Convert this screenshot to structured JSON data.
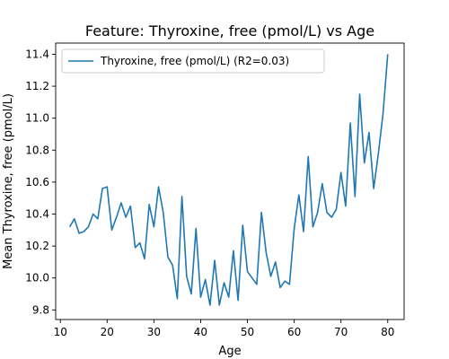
{
  "chart_data": {
    "type": "line",
    "title": "Feature: Thyroxine, free (pmol/L) vs Age",
    "xlabel": "Age",
    "ylabel": "Mean Thyroxine, free (pmol/L)",
    "xlim": [
      9,
      83.5
    ],
    "ylim": [
      9.74,
      11.47
    ],
    "xticks": [
      10,
      20,
      30,
      40,
      50,
      60,
      70,
      80
    ],
    "yticks": [
      9.8,
      10.0,
      10.2,
      10.4,
      10.6,
      10.8,
      11.0,
      11.2,
      11.4
    ],
    "ytick_labels": [
      "9.8",
      "10.0",
      "10.2",
      "10.4",
      "10.6",
      "10.8",
      "11.0",
      "11.2",
      "11.4"
    ],
    "grid": false,
    "legend_position": "top-left",
    "series": [
      {
        "name": "Thyroxine, free (pmol/L) (R2=0.03)",
        "color": "#1f77b4",
        "x": [
          12,
          13,
          14,
          15,
          16,
          17,
          18,
          19,
          20,
          21,
          22,
          23,
          24,
          25,
          26,
          27,
          28,
          29,
          30,
          31,
          32,
          33,
          34,
          35,
          36,
          37,
          38,
          39,
          40,
          41,
          42,
          43,
          44,
          45,
          46,
          47,
          48,
          49,
          50,
          51,
          52,
          53,
          54,
          55,
          56,
          57,
          58,
          59,
          60,
          61,
          62,
          63,
          64,
          65,
          66,
          67,
          68,
          69,
          70,
          71,
          72,
          73,
          74,
          75,
          76,
          77,
          78,
          79,
          80
        ],
        "y": [
          10.32,
          10.37,
          10.28,
          10.29,
          10.32,
          10.4,
          10.37,
          10.56,
          10.57,
          10.3,
          10.38,
          10.47,
          10.38,
          10.45,
          10.19,
          10.22,
          10.12,
          10.46,
          10.32,
          10.57,
          10.41,
          10.13,
          10.08,
          9.87,
          10.51,
          10.01,
          9.9,
          10.31,
          9.88,
          9.99,
          9.83,
          10.11,
          9.83,
          9.97,
          9.88,
          10.17,
          9.86,
          10.33,
          10.04,
          10.0,
          9.96,
          10.41,
          10.16,
          10.01,
          10.1,
          9.94,
          9.98,
          9.96,
          10.31,
          10.52,
          10.29,
          10.76,
          10.32,
          10.41,
          10.59,
          10.41,
          10.38,
          10.43,
          10.66,
          10.45,
          10.97,
          10.51,
          11.15,
          10.72,
          10.91,
          10.56,
          10.78,
          11.03,
          11.4
        ]
      }
    ]
  }
}
